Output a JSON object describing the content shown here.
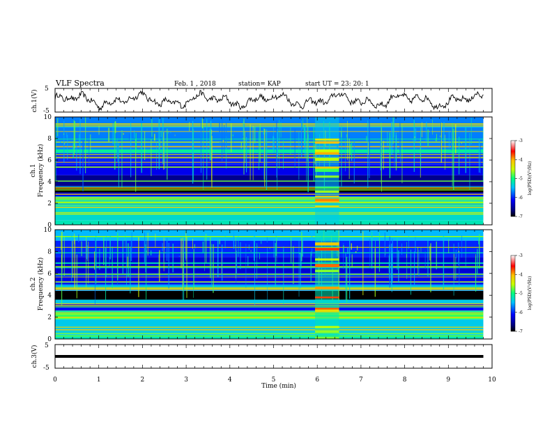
{
  "header": {
    "title": "VLF Spectra",
    "date": "Feb. 1 , 2018",
    "station": "station= KAP",
    "start_ut": "start UT =  23: 20: 1"
  },
  "chart_data": {
    "type": "heatmap",
    "xlabel": "Time  (min)",
    "x_ticks": [
      "0",
      "1",
      "2",
      "3",
      "4",
      "5",
      "6",
      "7",
      "8",
      "9",
      "10"
    ],
    "xlim": [
      0,
      10
    ],
    "data_end_min": 9.8,
    "panels": [
      {
        "kind": "waveform",
        "ylabel": "ch.1(V)",
        "ylim": [
          -5,
          5
        ],
        "y_ticks": [
          "5",
          "-5"
        ]
      },
      {
        "kind": "spectrogram",
        "channel": "ch.1",
        "ylabel": "Frequency  (kHz)",
        "ylim": [
          0,
          10
        ],
        "y_ticks": [
          "0",
          "2",
          "4",
          "6",
          "8",
          "10"
        ],
        "colorbar": {
          "label": "log(PSD)(V²/Hz)",
          "range": [
            -7,
            -3
          ],
          "ticks": [
            "-3",
            "-4",
            "-5",
            "-6",
            "-7"
          ]
        },
        "bands_khz": [
          {
            "from": 0.0,
            "to": 0.4,
            "level": -5.2
          },
          {
            "from": 0.4,
            "to": 1.8,
            "level": -5.3
          },
          {
            "from": 1.8,
            "to": 2.6,
            "level": -4.8
          },
          {
            "from": 2.6,
            "to": 3.0,
            "level": -6.2
          },
          {
            "from": 3.0,
            "to": 3.6,
            "level": -7.0
          },
          {
            "from": 3.6,
            "to": 4.6,
            "level": -6.6
          },
          {
            "from": 4.6,
            "to": 5.6,
            "level": -6.2
          },
          {
            "from": 5.6,
            "to": 6.7,
            "level": -6.0
          },
          {
            "from": 6.7,
            "to": 7.0,
            "level": -5.2
          },
          {
            "from": 7.0,
            "to": 10.0,
            "level": -5.7
          }
        ],
        "burst": {
          "t_start": 5.95,
          "t_end": 6.5,
          "level": -5.0
        }
      },
      {
        "kind": "spectrogram",
        "channel": "ch.2",
        "ylabel": "Frequency  (kHz)",
        "ylim": [
          0,
          10
        ],
        "y_ticks": [
          "0",
          "2",
          "4",
          "6",
          "8",
          "10"
        ],
        "colorbar": {
          "label": "log(PSD)(V²/Hz)",
          "range": [
            -7,
            -3
          ],
          "ticks": [
            "-3",
            "-4",
            "-5",
            "-6",
            "-7"
          ]
        },
        "bands_khz": [
          {
            "from": 0.0,
            "to": 0.4,
            "level": -5.2
          },
          {
            "from": 0.4,
            "to": 1.8,
            "level": -5.4
          },
          {
            "from": 1.8,
            "to": 2.6,
            "level": -4.9
          },
          {
            "from": 2.6,
            "to": 3.2,
            "level": -6.1
          },
          {
            "from": 3.2,
            "to": 3.6,
            "level": -5.4
          },
          {
            "from": 3.6,
            "to": 4.4,
            "level": -7.0
          },
          {
            "from": 4.4,
            "to": 5.0,
            "level": -5.6
          },
          {
            "from": 5.0,
            "to": 6.0,
            "level": -6.2
          },
          {
            "from": 6.0,
            "to": 7.5,
            "level": -6.3
          },
          {
            "from": 7.5,
            "to": 9.0,
            "level": -6.0
          },
          {
            "from": 9.0,
            "to": 10.0,
            "level": -5.5
          }
        ],
        "burst": {
          "t_start": 5.95,
          "t_end": 6.5,
          "level": -4.8
        }
      },
      {
        "kind": "waveform",
        "ylabel": "ch.3(V)",
        "ylim": [
          -5,
          5
        ],
        "y_ticks": [
          "5",
          "-5"
        ],
        "flat_value": 0
      }
    ]
  }
}
